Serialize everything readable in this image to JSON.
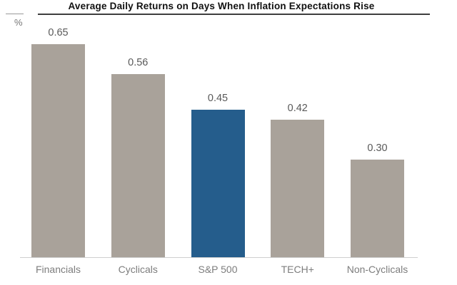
{
  "chart_data": {
    "type": "bar",
    "title": "Average Daily Returns on Days When Inflation Expectations Rise",
    "xlabel": "",
    "ylabel": "%",
    "categories": [
      "Financials",
      "Cyclicals",
      "S&P 500",
      "TECH+",
      "Non-Cyclicals"
    ],
    "values": [
      0.65,
      0.56,
      0.45,
      0.42,
      0.3
    ],
    "value_labels": [
      "0.65",
      "0.56",
      "0.45",
      "0.42",
      "0.30"
    ],
    "highlight_index": 2,
    "highlight_category": "S&P 500",
    "bar_color": "#a9a29a",
    "highlight_color": "#255d8c",
    "ylim": [
      0,
      0.7
    ],
    "grid": false,
    "legend": false
  }
}
